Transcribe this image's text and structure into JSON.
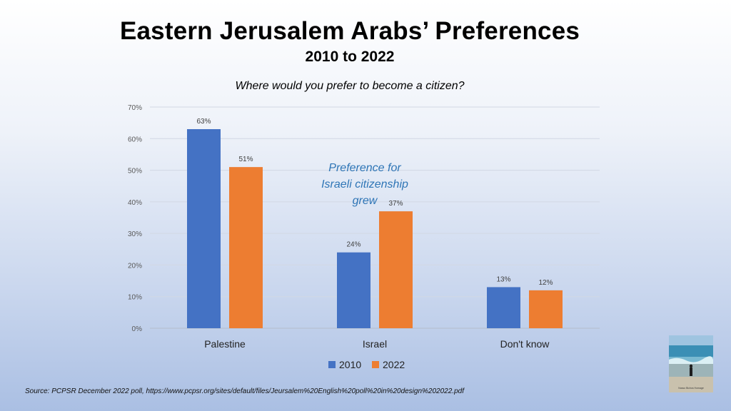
{
  "title": "Eastern Jerusalem Arabs’ Preferences",
  "subtitle": "2010 to 2022",
  "question": "Where would you prefer to become a citizen?",
  "annotation": [
    "Preference for",
    "Israeli citizenship",
    "grew"
  ],
  "source": "Source: PCPSR December 2022  poll, https://www.pcpsr.org/sites/default/files/Jeursalem%20English%20poll%20in%20design%202022.pdf",
  "thumbnail_caption": "Nosso Bichos Homage",
  "colors": {
    "series_2010": "#4472c4",
    "series_2022": "#ed7d31",
    "annotation": "#2e75b6"
  },
  "chart_data": {
    "type": "bar",
    "title": "Eastern Jerusalem Arabs’ Preferences",
    "subtitle": "2010 to 2022",
    "xlabel": "",
    "ylabel": "",
    "categories": [
      "Palestine",
      "Israel",
      "Don't know"
    ],
    "series": [
      {
        "name": "2010",
        "values": [
          63,
          24,
          13
        ],
        "labels": [
          "63%",
          "24%",
          "13%"
        ]
      },
      {
        "name": "2022",
        "values": [
          51,
          37,
          12
        ],
        "labels": [
          "51%",
          "37%",
          "12%"
        ]
      }
    ],
    "ylim": [
      0,
      70
    ],
    "yticks": [
      "0%",
      "10%",
      "20%",
      "30%",
      "40%",
      "50%",
      "60%",
      "70%"
    ],
    "grid": true,
    "legend": "bottom-center"
  }
}
